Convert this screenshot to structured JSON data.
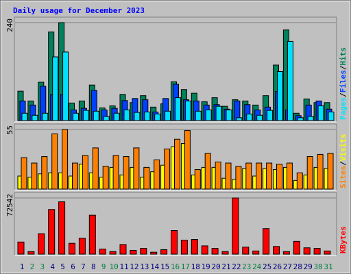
{
  "title": "Daily usage for December 2023",
  "legend_separator": "/",
  "chart_data": [
    {
      "type": "bar",
      "ylim": [
        0,
        240
      ],
      "yticks": [
        240
      ],
      "series": [
        {
          "name": "Hits",
          "color": "#00805c",
          "values": [
            72,
            48,
            94,
            217,
            240,
            43,
            48,
            87,
            31,
            36,
            64,
            44,
            61,
            33,
            41,
            95,
            76,
            67,
            46,
            56,
            35,
            51,
            48,
            38,
            61,
            136,
            222,
            18,
            53,
            44,
            44
          ]
        },
        {
          "name": "Files",
          "color": "#0040ff",
          "values": [
            48,
            38,
            84,
            64,
            64,
            26,
            30,
            74,
            26,
            30,
            49,
            54,
            51,
            21,
            54,
            89,
            51,
            48,
            38,
            39,
            28,
            48,
            39,
            26,
            33,
            71,
            26,
            12,
            38,
            48,
            28
          ]
        },
        {
          "name": "Pages",
          "color": "#00e0ff",
          "values": [
            18,
            13,
            18,
            156,
            168,
            18,
            25,
            23,
            10,
            18,
            26,
            20,
            21,
            16,
            23,
            56,
            48,
            23,
            26,
            35,
            26,
            7,
            16,
            13,
            25,
            120,
            194,
            7,
            10,
            36,
            21
          ]
        }
      ]
    },
    {
      "type": "bar",
      "ylim": [
        0,
        55
      ],
      "yticks": [
        55
      ],
      "series": [
        {
          "name": "Visits",
          "color": "#ffff00",
          "values": [
            12,
            11,
            14,
            15,
            15,
            12,
            23,
            15,
            11,
            20,
            13,
            20,
            11,
            16,
            22,
            39,
            42,
            13,
            20,
            20,
            10,
            9,
            19,
            12,
            19,
            18,
            20,
            8,
            13,
            20,
            19
          ]
        },
        {
          "name": "Sites",
          "color": "#ff8000",
          "values": [
            29,
            24,
            30,
            51,
            55,
            24,
            31,
            38,
            21,
            31,
            30,
            38,
            20,
            27,
            37,
            46,
            54,
            18,
            33,
            25,
            24,
            21,
            24,
            24,
            24,
            23,
            24,
            15,
            30,
            32,
            33
          ]
        }
      ]
    },
    {
      "type": "bar",
      "ylim": [
        0,
        72542
      ],
      "yticks": [
        72542
      ],
      "categories": [
        "1",
        "2",
        "3",
        "4",
        "5",
        "6",
        "7",
        "8",
        "9",
        "10",
        "11",
        "12",
        "13",
        "14",
        "15",
        "16",
        "17",
        "18",
        "19",
        "20",
        "21",
        "22",
        "23",
        "24",
        "25",
        "26",
        "27",
        "28",
        "29",
        "30",
        "31"
      ],
      "category_colors": [
        "#000080",
        "#008040",
        "#008040",
        "#000080",
        "#000080",
        "#000080",
        "#000080",
        "#000080",
        "#008040",
        "#008040",
        "#000080",
        "#000080",
        "#000080",
        "#000080",
        "#000080",
        "#008040",
        "#008040",
        "#000080",
        "#000080",
        "#000080",
        "#000080",
        "#000080",
        "#008040",
        "#008040",
        "#000080",
        "#000080",
        "#000080",
        "#000080",
        "#000080",
        "#008040",
        "#008040"
      ],
      "series": [
        {
          "name": "KBytes",
          "color": "#ff0000",
          "values": [
            15660,
            3300,
            26400,
            57700,
            67600,
            14000,
            20600,
            50300,
            6600,
            3300,
            12400,
            4900,
            7400,
            2500,
            5800,
            30500,
            18100,
            19000,
            10700,
            7400,
            3300,
            72542,
            9100,
            4100,
            33000,
            9900,
            3300,
            16500,
            8200,
            7400,
            4100
          ]
        }
      ]
    }
  ]
}
